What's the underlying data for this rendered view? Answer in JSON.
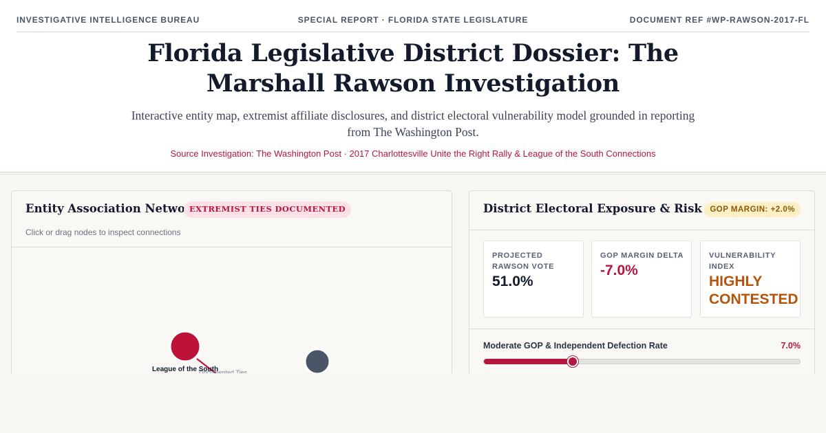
{
  "topbar": {
    "left": "INVESTIGATIVE INTELLIGENCE BUREAU",
    "center": "SPECIAL REPORT · FLORIDA STATE LEGISLATURE",
    "right": "DOCUMENT REF #WP-RAWSON-2017-FL"
  },
  "header": {
    "title": "Florida Legislative District Dossier: The Marshall Rawson Investigation",
    "subtitle": "Interactive entity map, extremist affiliate disclosures, and district electoral vulnerability model grounded in reporting from The Washington Post.",
    "source": "Source Investigation: The Washington Post · 2017 Charlottesville Unite the Right Rally & League of the South Connections"
  },
  "network_panel": {
    "title": "Entity Association Network",
    "badge": "EXTREMIST TIES DOCUMENTED",
    "hint": "Click or drag nodes to inspect connections",
    "nodes": [
      {
        "label": "League of the South",
        "color": "#be1339"
      },
      {
        "label": "",
        "color": "#4a5568"
      }
    ],
    "edge_label": "Documented Ties"
  },
  "risk_panel": {
    "title": "District Electoral Exposure & Risk",
    "badge": "GOP MARGIN: +2.0%",
    "stats": [
      {
        "label": "PROJECTED RAWSON VOTE",
        "value": "51.0%"
      },
      {
        "label": "GOP MARGIN DELTA",
        "value": "-7.0%"
      },
      {
        "label": "VULNERABILITY INDEX",
        "value": "HIGHLY CONTESTED"
      }
    ],
    "slider": {
      "label": "Moderate GOP & Independent Defection Rate",
      "value_text": "7.0%",
      "value": 7.0,
      "min": 0,
      "max": 25
    },
    "colors": {
      "accent": "#b5173f",
      "warning": "#b45309",
      "badge_bg": "#fcefc6"
    }
  }
}
